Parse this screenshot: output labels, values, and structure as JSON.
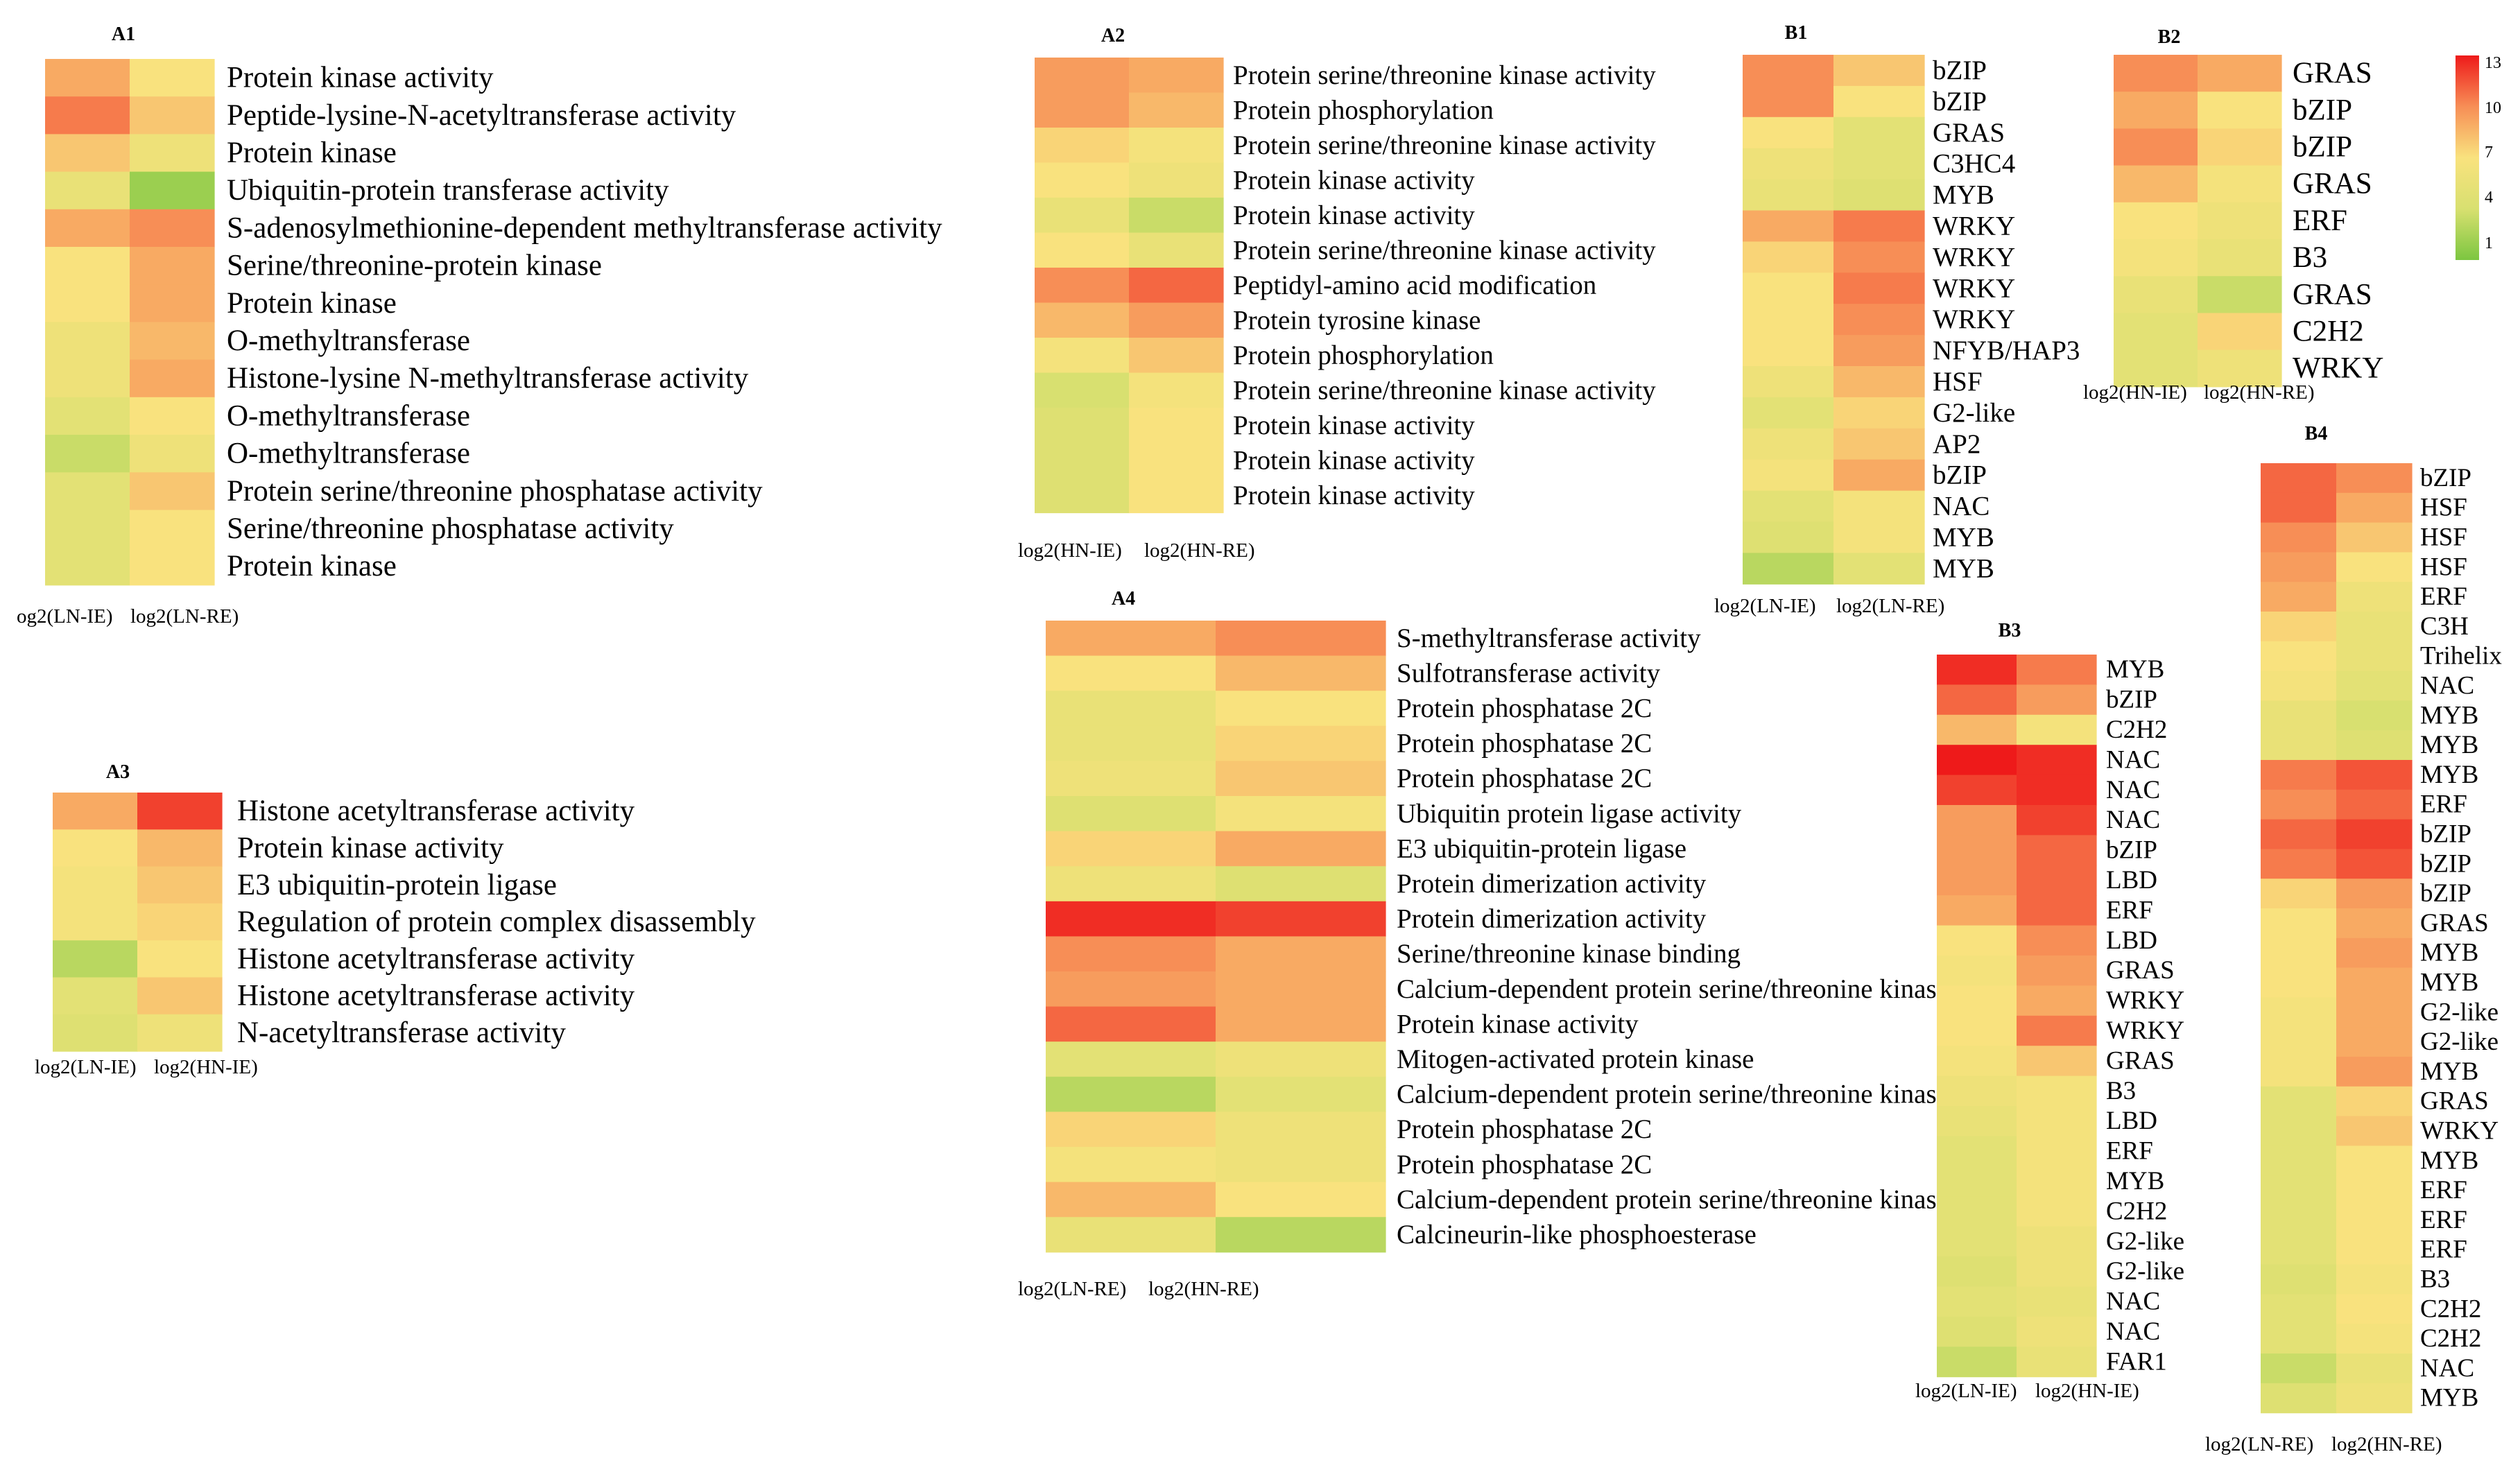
{
  "chart_data": {
    "type": "heatmap",
    "color_scale": {
      "min": 1,
      "max": 13,
      "low_color": "#7cc640",
      "mid_color": "#f9e27e",
      "high_color": "#ee1a1a"
    },
    "legend": {
      "ticks": [
        "13",
        "10",
        "7",
        "4",
        "1"
      ]
    },
    "panels": [
      {
        "id": "A1",
        "title": "A1",
        "columns": [
          "og2(LN-IE)",
          "log2(LN-RE)"
        ],
        "rows": [
          "Protein kinase activity",
          "Peptide-lysine-N-acetyltransferase activity",
          "Protein kinase",
          "Ubiquitin-protein transferase activity",
          "S-adenosylmethionine-dependent methyltransferase activity",
          "Serine/threonine-protein kinase",
          "Protein kinase",
          "O-methyltransferase",
          "Histone-lysine N-methyltransferase activity",
          "O-methyltransferase",
          "O-methyltransferase",
          "Protein serine/threonine phosphatase activity",
          "Serine/threonine phosphatase activity",
          "Protein kinase"
        ],
        "values": [
          [
            9,
            7
          ],
          [
            10.5,
            8
          ],
          [
            8,
            6
          ],
          [
            5.5,
            2
          ],
          [
            9,
            10
          ],
          [
            7,
            9
          ],
          [
            7,
            9
          ],
          [
            6,
            8.5
          ],
          [
            6,
            9
          ],
          [
            5,
            7
          ],
          [
            3.5,
            6
          ],
          [
            5,
            8
          ],
          [
            5,
            7
          ],
          [
            5,
            7
          ]
        ]
      },
      {
        "id": "A2",
        "title": "A2",
        "columns": [
          "log2(HN-IE)",
          "log2(HN-RE)"
        ],
        "rows": [
          "Protein serine/threonine kinase activity",
          "Protein phosphorylation",
          "Protein serine/threonine kinase activity",
          "Protein kinase activity",
          "Protein kinase activity",
          "Protein serine/threonine kinase activity",
          "Peptidyl-amino acid modification",
          "Protein tyrosine kinase",
          "Protein phosphorylation",
          "Protein serine/threonine kinase activity",
          "Protein kinase activity",
          "Protein kinase activity",
          "Protein kinase activity"
        ],
        "values": [
          [
            9.5,
            9
          ],
          [
            9.5,
            8.5
          ],
          [
            7.5,
            6.5
          ],
          [
            7,
            6
          ],
          [
            5.5,
            3.5
          ],
          [
            7,
            5.5
          ],
          [
            10,
            11
          ],
          [
            8.5,
            9.5
          ],
          [
            6.5,
            8
          ],
          [
            4,
            6.5
          ],
          [
            4.5,
            7
          ],
          [
            4.5,
            7
          ],
          [
            4.5,
            7
          ]
        ]
      },
      {
        "id": "A3",
        "title": "A3",
        "columns": [
          "log2(LN-IE)",
          "log2(HN-IE)"
        ],
        "rows": [
          "Histone acetyltransferase activity",
          "Protein kinase activity",
          "E3 ubiquitin-protein ligase",
          "Regulation of protein complex disassembly",
          "Histone acetyltransferase activity",
          "Histone acetyltransferase activity",
          "N-acetyltransferase activity"
        ],
        "values": [
          [
            9,
            12
          ],
          [
            7,
            8.5
          ],
          [
            6.5,
            8
          ],
          [
            6.5,
            7.5
          ],
          [
            3,
            7
          ],
          [
            5,
            8
          ],
          [
            4.5,
            6
          ]
        ]
      },
      {
        "id": "A4",
        "title": "A4",
        "columns": [
          "log2(LN-RE)",
          "log2(HN-RE)"
        ],
        "rows": [
          "S-methyltransferase activity",
          "Sulfotransferase activity",
          "Protein phosphatase 2C",
          "Protein phosphatase 2C",
          "Protein phosphatase 2C",
          "Ubiquitin protein ligase activity",
          "E3 ubiquitin-protein ligase",
          "Protein dimerization activity",
          "Protein dimerization activity",
          "Serine/threonine kinase binding",
          "Calcium-dependent protein serine/threonine kinase activity",
          "Protein kinase activity",
          "Mitogen-activated protein kinase",
          "Calcium-dependent protein serine/threonine kinase activity",
          "Protein phosphatase 2C",
          "Protein phosphatase 2C",
          "Calcium-dependent protein serine/threonine kinase activity",
          "Calcineurin-like phosphoesterase"
        ],
        "values": [
          [
            9,
            10
          ],
          [
            7,
            8.5
          ],
          [
            5.5,
            7
          ],
          [
            5.5,
            7.5
          ],
          [
            6,
            8
          ],
          [
            4.5,
            6.5
          ],
          [
            7.5,
            9
          ],
          [
            6,
            4.5
          ],
          [
            12.5,
            12
          ],
          [
            10,
            9
          ],
          [
            9.5,
            9
          ],
          [
            11,
            9
          ],
          [
            5,
            6
          ],
          [
            3,
            5
          ],
          [
            7.5,
            6
          ],
          [
            6.5,
            6
          ],
          [
            8.5,
            7
          ],
          [
            5.5,
            3
          ]
        ]
      },
      {
        "id": "B1",
        "title": "B1",
        "columns": [
          "log2(LN-IE)",
          "log2(LN-RE)"
        ],
        "rows": [
          "bZIP",
          "bZIP",
          "GRAS",
          "C3HC4",
          "MYB",
          "WRKY",
          "WRKY",
          "WRKY",
          "WRKY",
          "NFYB/HAP3",
          "HSF",
          "G2-like",
          "AP2",
          "bZIP",
          "NAC",
          "MYB",
          "MYB"
        ],
        "values": [
          [
            10,
            8
          ],
          [
            10,
            7
          ],
          [
            7,
            5
          ],
          [
            6,
            5
          ],
          [
            5.5,
            4.5
          ],
          [
            9,
            10.5
          ],
          [
            7.5,
            10
          ],
          [
            7,
            10.5
          ],
          [
            7,
            10
          ],
          [
            7,
            9.5
          ],
          [
            6,
            8.5
          ],
          [
            5,
            7.5
          ],
          [
            6,
            8
          ],
          [
            6.5,
            9
          ],
          [
            5,
            6.5
          ],
          [
            4.5,
            6.5
          ],
          [
            3,
            5
          ]
        ]
      },
      {
        "id": "B2",
        "title": "B2",
        "columns": [
          "log2(HN-IE)",
          "log2(HN-RE)"
        ],
        "rows": [
          "GRAS",
          "bZIP",
          "bZIP",
          "GRAS",
          "ERF",
          "B3",
          "GRAS",
          "C2H2",
          "WRKY"
        ],
        "values": [
          [
            10,
            9
          ],
          [
            9,
            7
          ],
          [
            10,
            7.5
          ],
          [
            8.5,
            6.5
          ],
          [
            7,
            6
          ],
          [
            6.5,
            5.5
          ],
          [
            5.5,
            3.5
          ],
          [
            5,
            7.5
          ],
          [
            5,
            6
          ]
        ]
      },
      {
        "id": "B3",
        "title": "B3",
        "columns": [
          "log2(LN-IE)",
          "log2(HN-IE)"
        ],
        "rows": [
          "MYB",
          "bZIP",
          "C2H2",
          "NAC",
          "NAC",
          "NAC",
          "bZIP",
          "LBD",
          "ERF",
          "LBD",
          "GRAS",
          "WRKY",
          "WRKY",
          "GRAS",
          "B3",
          "LBD",
          "ERF",
          "MYB",
          "C2H2",
          "G2-like",
          "G2-like",
          "NAC",
          "NAC",
          "FAR1"
        ],
        "values": [
          [
            12.5,
            10.5
          ],
          [
            11,
            9.5
          ],
          [
            8.5,
            6.5
          ],
          [
            13,
            12.5
          ],
          [
            12,
            12.5
          ],
          [
            9.5,
            12
          ],
          [
            9.5,
            11
          ],
          [
            9.5,
            11
          ],
          [
            9,
            11
          ],
          [
            7,
            10
          ],
          [
            6.5,
            9.5
          ],
          [
            7,
            9
          ],
          [
            7,
            10.5
          ],
          [
            6.5,
            8
          ],
          [
            6,
            6.5
          ],
          [
            5.5,
            6.5
          ],
          [
            5,
            6.5
          ],
          [
            5,
            6.5
          ],
          [
            5,
            6.5
          ],
          [
            5,
            6
          ],
          [
            4.5,
            6
          ],
          [
            5,
            5.5
          ],
          [
            4.5,
            6
          ],
          [
            3.5,
            5.5
          ]
        ]
      },
      {
        "id": "B4",
        "title": "B4",
        "columns": [
          "log2(LN-RE)",
          "log2(HN-RE)"
        ],
        "rows": [
          "bZIP",
          "HSF",
          "HSF",
          "HSF",
          "ERF",
          "C3H",
          "Trihelix",
          "NAC",
          "MYB",
          "MYB",
          "MYB",
          "ERF",
          "bZIP",
          "bZIP",
          "bZIP",
          "GRAS",
          "MYB",
          "MYB",
          "G2-like",
          "G2-like",
          "MYB",
          "GRAS",
          "WRKY",
          "MYB",
          "ERF",
          "ERF",
          "ERF",
          "B3",
          "C2H2",
          "C2H2",
          "NAC",
          "MYB"
        ],
        "values": [
          [
            11,
            10
          ],
          [
            11,
            9
          ],
          [
            10,
            8
          ],
          [
            9.5,
            7
          ],
          [
            9,
            6
          ],
          [
            7.5,
            5.5
          ],
          [
            7,
            5.5
          ],
          [
            6.5,
            5
          ],
          [
            5.5,
            4
          ],
          [
            5.5,
            4.5
          ],
          [
            10.5,
            11.5
          ],
          [
            10,
            11
          ],
          [
            11,
            12
          ],
          [
            10.5,
            11.5
          ],
          [
            7.5,
            9.5
          ],
          [
            7,
            9
          ],
          [
            7,
            9.5
          ],
          [
            7,
            9
          ],
          [
            6.5,
            9
          ],
          [
            6.5,
            9
          ],
          [
            6.5,
            9.5
          ],
          [
            5,
            7.5
          ],
          [
            5,
            8
          ],
          [
            5,
            7
          ],
          [
            5,
            7
          ],
          [
            5,
            7
          ],
          [
            5,
            7
          ],
          [
            4.5,
            6.5
          ],
          [
            5,
            7
          ],
          [
            5,
            6.5
          ],
          [
            3.5,
            5.5
          ],
          [
            4.5,
            6
          ]
        ]
      }
    ]
  }
}
